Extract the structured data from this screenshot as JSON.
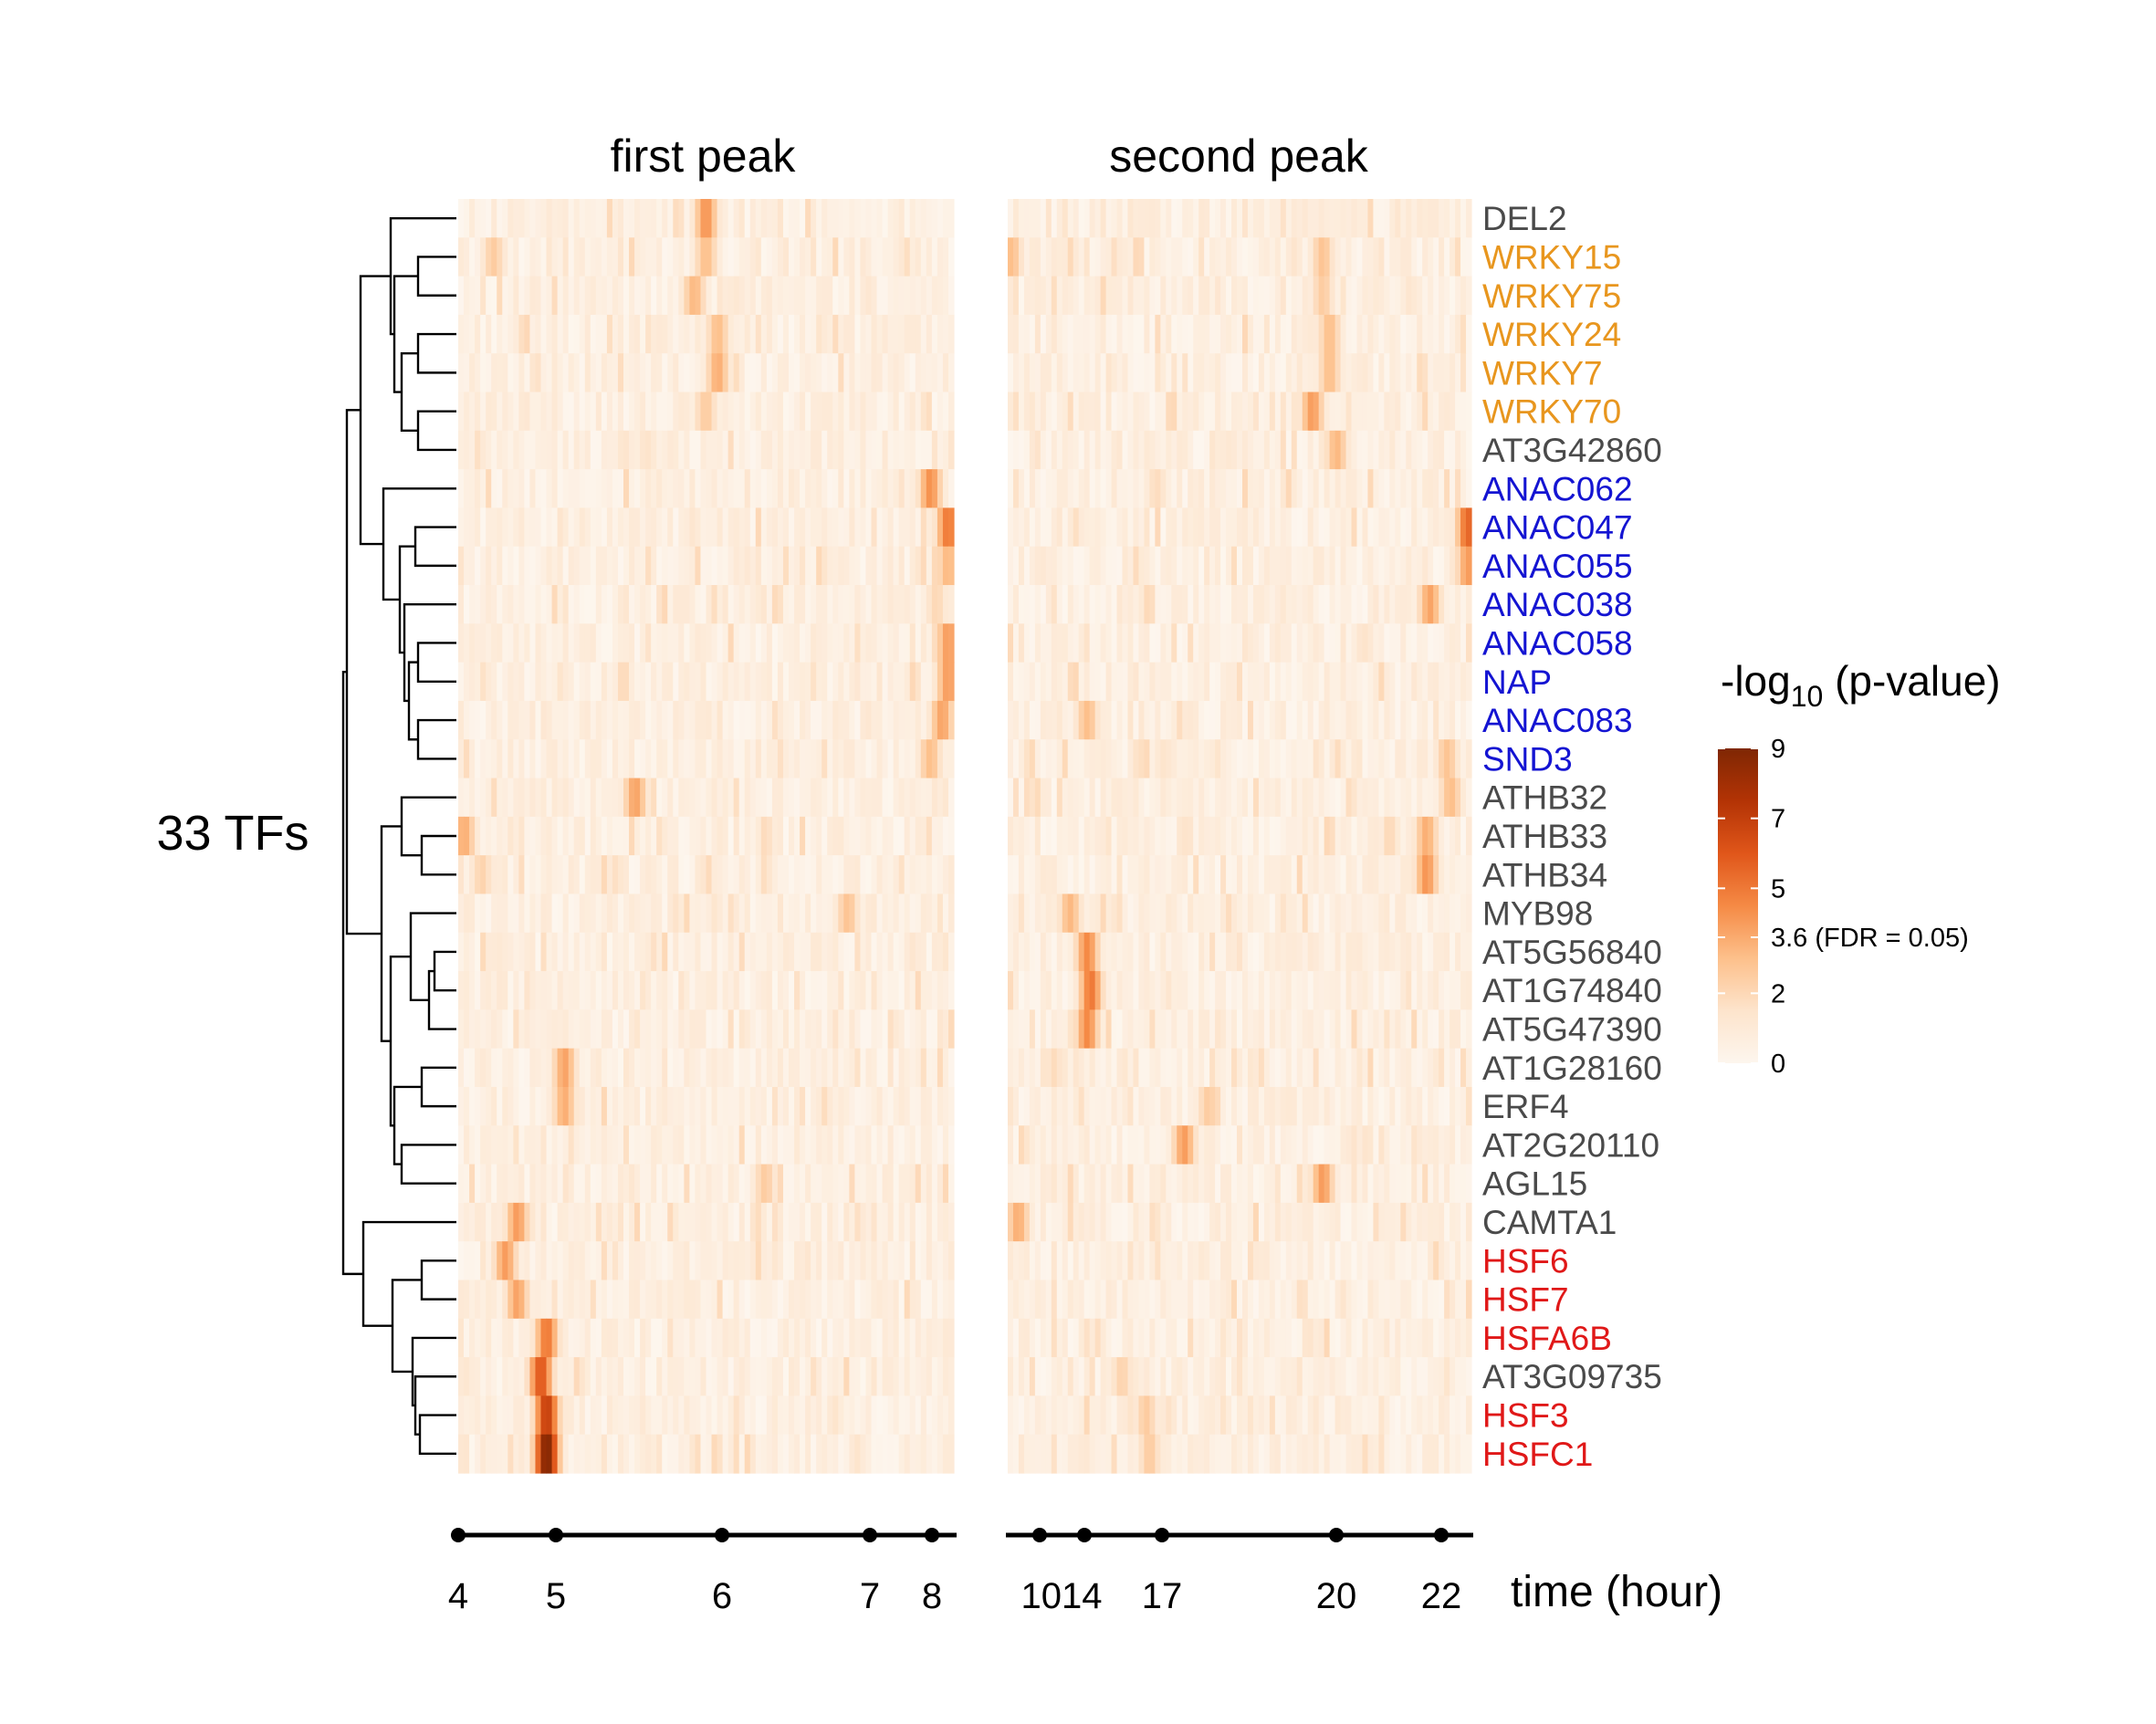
{
  "chart_data": {
    "type": "heatmap",
    "panels": [
      {
        "title": "first peak",
        "x_ticks": [
          4,
          5,
          6,
          7,
          8
        ],
        "x_range": [
          4,
          8.2
        ]
      },
      {
        "title": "second peak",
        "x_ticks": [
          10,
          14,
          17,
          20,
          22
        ],
        "x_range": [
          9.2,
          22.6
        ]
      }
    ],
    "row_group_label": "33 TFs",
    "x_axis_label": "time (hour)",
    "x_tick_labels": [
      "4",
      "5",
      "6",
      "7",
      "8",
      "1014",
      "17",
      "20",
      "22"
    ],
    "rows": [
      {
        "name": "DEL2",
        "color": "#4a4a4a"
      },
      {
        "name": "WRKY15",
        "color": "#e8961e"
      },
      {
        "name": "WRKY75",
        "color": "#e8961e"
      },
      {
        "name": "WRKY24",
        "color": "#e8961e"
      },
      {
        "name": "WRKY7",
        "color": "#e8961e"
      },
      {
        "name": "WRKY70",
        "color": "#e8961e"
      },
      {
        "name": "AT3G42860",
        "color": "#4a4a4a"
      },
      {
        "name": "ANAC062",
        "color": "#1414d2"
      },
      {
        "name": "ANAC047",
        "color": "#1414d2"
      },
      {
        "name": "ANAC055",
        "color": "#1414d2"
      },
      {
        "name": "ANAC038",
        "color": "#1414d2"
      },
      {
        "name": "ANAC058",
        "color": "#1414d2"
      },
      {
        "name": "NAP",
        "color": "#1414d2"
      },
      {
        "name": "ANAC083",
        "color": "#1414d2"
      },
      {
        "name": "SND3",
        "color": "#1414d2"
      },
      {
        "name": "ATHB32",
        "color": "#4a4a4a"
      },
      {
        "name": "ATHB33",
        "color": "#4a4a4a"
      },
      {
        "name": "ATHB34",
        "color": "#4a4a4a"
      },
      {
        "name": "MYB98",
        "color": "#4a4a4a"
      },
      {
        "name": "AT5G56840",
        "color": "#4a4a4a"
      },
      {
        "name": "AT1G74840",
        "color": "#4a4a4a"
      },
      {
        "name": "AT5G47390",
        "color": "#4a4a4a"
      },
      {
        "name": "AT1G28160",
        "color": "#4a4a4a"
      },
      {
        "name": "ERF4",
        "color": "#4a4a4a"
      },
      {
        "name": "AT2G20110",
        "color": "#4a4a4a"
      },
      {
        "name": "AGL15",
        "color": "#4a4a4a"
      },
      {
        "name": "CAMTA1",
        "color": "#4a4a4a"
      },
      {
        "name": "HSF6",
        "color": "#e01818"
      },
      {
        "name": "HSF7",
        "color": "#e01818"
      },
      {
        "name": "HSFA6B",
        "color": "#e01818"
      },
      {
        "name": "AT3G09735",
        "color": "#4a4a4a"
      },
      {
        "name": "HSF3",
        "color": "#e01818"
      },
      {
        "name": "HSFC1",
        "color": "#e01818"
      }
    ],
    "hotspots": [
      {
        "row": 0,
        "panel": 0,
        "t": 6.1,
        "v": 4.2
      },
      {
        "row": 1,
        "panel": 0,
        "t": 4.3,
        "v": 2.5
      },
      {
        "row": 1,
        "panel": 0,
        "t": 6.1,
        "v": 3.0
      },
      {
        "row": 1,
        "panel": 1,
        "t": 9.3,
        "v": 3.0
      },
      {
        "row": 1,
        "panel": 1,
        "t": 18.3,
        "v": 2.8
      },
      {
        "row": 2,
        "panel": 0,
        "t": 6.0,
        "v": 3.2
      },
      {
        "row": 2,
        "panel": 1,
        "t": 18.3,
        "v": 2.5
      },
      {
        "row": 3,
        "panel": 0,
        "t": 6.2,
        "v": 3.0
      },
      {
        "row": 3,
        "panel": 1,
        "t": 18.5,
        "v": 3.0
      },
      {
        "row": 4,
        "panel": 0,
        "t": 6.2,
        "v": 3.5
      },
      {
        "row": 4,
        "panel": 1,
        "t": 18.5,
        "v": 3.0
      },
      {
        "row": 5,
        "panel": 0,
        "t": 6.1,
        "v": 2.5
      },
      {
        "row": 5,
        "panel": 1,
        "t": 18.0,
        "v": 4.0
      },
      {
        "row": 6,
        "panel": 0,
        "t": 5.6,
        "v": 1.5
      },
      {
        "row": 6,
        "panel": 1,
        "t": 18.7,
        "v": 3.2
      },
      {
        "row": 7,
        "panel": 0,
        "t": 8.0,
        "v": 4.3
      },
      {
        "row": 7,
        "panel": 1,
        "t": 13.5,
        "v": 1.8
      },
      {
        "row": 8,
        "panel": 0,
        "t": 8.15,
        "v": 5.0
      },
      {
        "row": 8,
        "panel": 1,
        "t": 22.5,
        "v": 5.5
      },
      {
        "row": 9,
        "panel": 0,
        "t": 8.15,
        "v": 3.2
      },
      {
        "row": 9,
        "panel": 1,
        "t": 22.5,
        "v": 4.0
      },
      {
        "row": 10,
        "panel": 0,
        "t": 8.05,
        "v": 2.0
      },
      {
        "row": 10,
        "panel": 1,
        "t": 21.4,
        "v": 3.8
      },
      {
        "row": 11,
        "panel": 0,
        "t": 8.15,
        "v": 4.0
      },
      {
        "row": 11,
        "panel": 1,
        "t": 19.5,
        "v": 1.5
      },
      {
        "row": 12,
        "panel": 0,
        "t": 8.15,
        "v": 4.0
      },
      {
        "row": 13,
        "panel": 0,
        "t": 8.1,
        "v": 3.8
      },
      {
        "row": 13,
        "panel": 1,
        "t": 11.5,
        "v": 3.0
      },
      {
        "row": 14,
        "panel": 0,
        "t": 8.0,
        "v": 3.0
      },
      {
        "row": 14,
        "panel": 1,
        "t": 21.9,
        "v": 2.8
      },
      {
        "row": 15,
        "panel": 0,
        "t": 5.5,
        "v": 3.8
      },
      {
        "row": 15,
        "panel": 1,
        "t": 22.0,
        "v": 3.0
      },
      {
        "row": 16,
        "panel": 0,
        "t": 4.05,
        "v": 3.5
      },
      {
        "row": 16,
        "panel": 1,
        "t": 21.3,
        "v": 3.5
      },
      {
        "row": 17,
        "panel": 0,
        "t": 4.2,
        "v": 2.2
      },
      {
        "row": 17,
        "panel": 1,
        "t": 21.3,
        "v": 4.2
      },
      {
        "row": 18,
        "panel": 0,
        "t": 7.3,
        "v": 2.8
      },
      {
        "row": 18,
        "panel": 1,
        "t": 11.0,
        "v": 3.2
      },
      {
        "row": 19,
        "panel": 1,
        "t": 11.5,
        "v": 4.5
      },
      {
        "row": 20,
        "panel": 1,
        "t": 11.6,
        "v": 5.0
      },
      {
        "row": 21,
        "panel": 1,
        "t": 11.5,
        "v": 4.5
      },
      {
        "row": 22,
        "panel": 0,
        "t": 4.9,
        "v": 3.8
      },
      {
        "row": 23,
        "panel": 0,
        "t": 4.9,
        "v": 3.5
      },
      {
        "row": 23,
        "panel": 1,
        "t": 15.0,
        "v": 2.5
      },
      {
        "row": 24,
        "panel": 1,
        "t": 14.3,
        "v": 4.0
      },
      {
        "row": 25,
        "panel": 0,
        "t": 6.6,
        "v": 2.5
      },
      {
        "row": 25,
        "panel": 1,
        "t": 18.3,
        "v": 4.0
      },
      {
        "row": 26,
        "panel": 0,
        "t": 4.5,
        "v": 4.0
      },
      {
        "row": 26,
        "panel": 1,
        "t": 9.5,
        "v": 3.5
      },
      {
        "row": 27,
        "panel": 0,
        "t": 4.4,
        "v": 4.0
      },
      {
        "row": 28,
        "panel": 0,
        "t": 4.5,
        "v": 3.8
      },
      {
        "row": 29,
        "panel": 0,
        "t": 4.75,
        "v": 5.0
      },
      {
        "row": 30,
        "panel": 0,
        "t": 4.7,
        "v": 6.0
      },
      {
        "row": 30,
        "panel": 1,
        "t": 12.5,
        "v": 2.2
      },
      {
        "row": 31,
        "panel": 0,
        "t": 4.75,
        "v": 7.0
      },
      {
        "row": 31,
        "panel": 1,
        "t": 13.2,
        "v": 2.5
      },
      {
        "row": 32,
        "panel": 0,
        "t": 4.75,
        "v": 9.0
      },
      {
        "row": 32,
        "panel": 1,
        "t": 13.3,
        "v": 2.5
      }
    ],
    "colorbar": {
      "title": "-log",
      "title_sub": "10",
      "title_suffix": " (p-value)",
      "range": [
        0,
        9
      ],
      "ticks": [
        {
          "value": 9,
          "label": "9"
        },
        {
          "value": 7,
          "label": "7"
        },
        {
          "value": 5,
          "label": "5"
        },
        {
          "value": 3.6,
          "label": "3.6 (FDR = 0.05)"
        },
        {
          "value": 2,
          "label": "2"
        },
        {
          "value": 0,
          "label": "0"
        }
      ],
      "colors": [
        "#fdf6ee",
        "#fde4cc",
        "#fdc08b",
        "#f58a45",
        "#e0561a",
        "#b33305",
        "#7f2704"
      ]
    }
  }
}
